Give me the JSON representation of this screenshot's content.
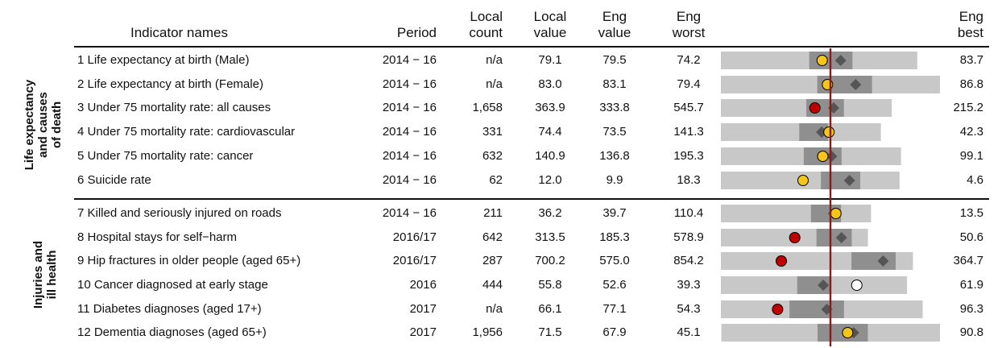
{
  "headers": {
    "indicator": "Indicator names",
    "period": "Period",
    "local_count": [
      "Local",
      "count"
    ],
    "local_value": [
      "Local",
      "value"
    ],
    "eng_value": [
      "Eng",
      "value"
    ],
    "eng_worst": [
      "Eng",
      "worst"
    ],
    "eng_best": [
      "Eng",
      "best"
    ]
  },
  "sections": [
    {
      "label": [
        "Life expectancy",
        "and causes",
        "of death"
      ]
    },
    {
      "label": [
        "Injuries and",
        "ill health"
      ]
    }
  ],
  "colors": {
    "range_light": "#c8c8c8",
    "range_mid": "#8f8f8f",
    "benchmark_line": "#8b1a1a",
    "england_marker": "#555555",
    "better": "#f5c518",
    "worse": "#c00000",
    "not_compared": "#ffffff"
  },
  "chart_data": {
    "type": "table",
    "rows": [
      {
        "name": "1 Life expectancy at birth (Male)",
        "period": "2014 − 16",
        "count": "n/a",
        "local": "79.1",
        "eng": "79.5",
        "worst": "74.2",
        "best": "83.7",
        "marker": "better"
      },
      {
        "name": "2 Life expectancy at birth (Female)",
        "period": "2014 − 16",
        "count": "n/a",
        "local": "83.0",
        "eng": "83.1",
        "worst": "79.4",
        "best": "86.8",
        "marker": "better"
      },
      {
        "name": "3 Under 75 mortality rate: all causes",
        "period": "2014 − 16",
        "count": "1,658",
        "local": "363.9",
        "eng": "333.8",
        "worst": "545.7",
        "best": "215.2",
        "marker": "worse"
      },
      {
        "name": "4 Under 75 mortality rate: cardiovascular",
        "period": "2014 − 16",
        "count": "331",
        "local": "74.4",
        "eng": "73.5",
        "worst": "141.3",
        "best": "42.3",
        "marker": "better"
      },
      {
        "name": "5 Under 75 mortality rate: cancer",
        "period": "2014 − 16",
        "count": "632",
        "local": "140.9",
        "eng": "136.8",
        "worst": "195.3",
        "best": "99.1",
        "marker": "better"
      },
      {
        "name": "6 Suicide rate",
        "period": "2014 − 16",
        "count": "62",
        "local": "12.0",
        "eng": "9.9",
        "worst": "18.3",
        "best": "4.6",
        "marker": "better"
      },
      {
        "name": "7 Killed and seriously injured on roads",
        "period": "2014 − 16",
        "count": "211",
        "local": "36.2",
        "eng": "39.7",
        "worst": "110.4",
        "best": "13.5",
        "marker": "better"
      },
      {
        "name": "8 Hospital stays for self−harm",
        "period": "2016/17",
        "count": "642",
        "local": "313.5",
        "eng": "185.3",
        "worst": "578.9",
        "best": "50.6",
        "marker": "worse"
      },
      {
        "name": "9 Hip fractures in older people (aged 65+)",
        "period": "2016/17",
        "count": "287",
        "local": "700.2",
        "eng": "575.0",
        "worst": "854.2",
        "best": "364.7",
        "marker": "worse"
      },
      {
        "name": "10 Cancer diagnosed at early stage",
        "period": "2016",
        "count": "444",
        "local": "55.8",
        "eng": "52.6",
        "worst": "39.3",
        "best": "61.9",
        "marker": "not_compared"
      },
      {
        "name": "11 Diabetes diagnoses (aged 17+)",
        "period": "2017",
        "count": "n/a",
        "local": "66.1",
        "eng": "77.1",
        "worst": "54.3",
        "best": "96.3",
        "marker": "worse"
      },
      {
        "name": "12 Dementia diagnoses (aged 65+)",
        "period": "2017",
        "count": "1,956",
        "local": "71.5",
        "eng": "67.9",
        "worst": "45.1",
        "best": "90.8",
        "marker": "better"
      }
    ],
    "spine": [
      {
        "p25": 0.45,
        "p75": 0.67
      },
      {
        "p25": 0.44,
        "p75": 0.69
      },
      {
        "p25": 0.5,
        "p75": 0.72
      },
      {
        "p25": 0.49,
        "p75": 0.67
      },
      {
        "p25": 0.46,
        "p75": 0.67
      },
      {
        "p25": 0.56,
        "p75": 0.78
      },
      {
        "p25": 0.6,
        "p75": 0.8
      },
      {
        "p25": 0.65,
        "p75": 0.89
      },
      {
        "p25": 0.68,
        "p75": 0.91
      },
      {
        "p25": 0.41,
        "p75": 0.59
      },
      {
        "p25": 0.34,
        "p75": 0.61
      },
      {
        "p25": 0.44,
        "p75": 0.67
      }
    ]
  }
}
